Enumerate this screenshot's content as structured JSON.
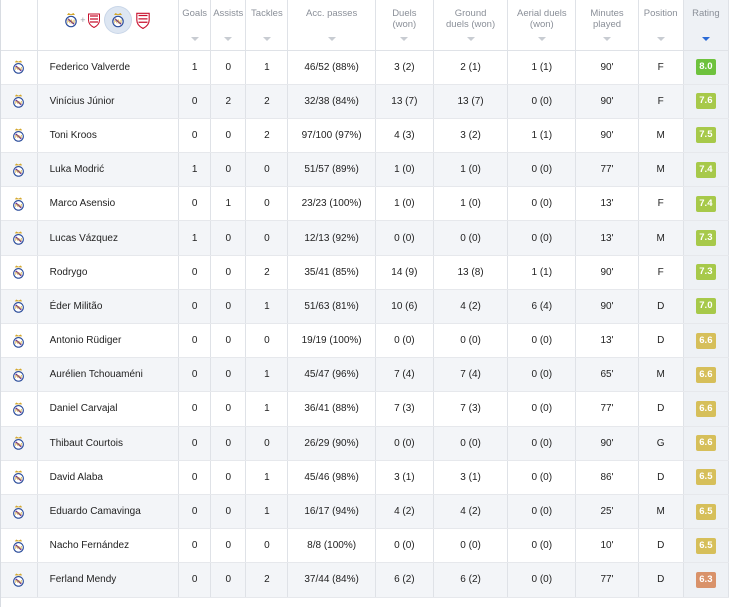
{
  "header": {
    "columns": [
      {
        "key": "goals",
        "label": "Goals"
      },
      {
        "key": "assists",
        "label": "Assists"
      },
      {
        "key": "tackles",
        "label": "Tackles"
      },
      {
        "key": "acc_passes",
        "label": "Acc. passes"
      },
      {
        "key": "duels",
        "label": "Duels (won)"
      },
      {
        "key": "ground",
        "label": "Ground duels (won)"
      },
      {
        "key": "aerial",
        "label": "Aerial duels (won)"
      },
      {
        "key": "minutes",
        "label": "Minutes played"
      },
      {
        "key": "position",
        "label": "Position"
      },
      {
        "key": "rating",
        "label": "Rating"
      }
    ],
    "team_icons": {
      "home": "real-madrid-crest-icon",
      "away": "sevilla-crest-icon",
      "combined_symbol": "+"
    }
  },
  "colors": {
    "rating_green": "#6ec23d",
    "rating_lime": "#a7c94a",
    "rating_yellow": "#d6bf5a",
    "rating_orange": "#d9926a",
    "sort_accent": "#2a6ad6"
  },
  "players": [
    {
      "name": "Federico Valverde",
      "goals": "1",
      "assists": "0",
      "tackles": "1",
      "acc_passes": "46/52 (88%)",
      "duels": "3 (2)",
      "ground": "2 (1)",
      "aerial": "1 (1)",
      "minutes": "90'",
      "position": "F",
      "rating": "8.0",
      "rating_tier": "green"
    },
    {
      "name": "Vinícius Júnior",
      "goals": "0",
      "assists": "2",
      "tackles": "2",
      "acc_passes": "32/38 (84%)",
      "duels": "13 (7)",
      "ground": "13 (7)",
      "aerial": "0 (0)",
      "minutes": "90'",
      "position": "F",
      "rating": "7.6",
      "rating_tier": "lime"
    },
    {
      "name": "Toni Kroos",
      "goals": "0",
      "assists": "0",
      "tackles": "2",
      "acc_passes": "97/100 (97%)",
      "duels": "4 (3)",
      "ground": "3 (2)",
      "aerial": "1 (1)",
      "minutes": "90'",
      "position": "M",
      "rating": "7.5",
      "rating_tier": "lime"
    },
    {
      "name": "Luka Modrić",
      "goals": "1",
      "assists": "0",
      "tackles": "0",
      "acc_passes": "51/57 (89%)",
      "duels": "1 (0)",
      "ground": "1 (0)",
      "aerial": "0 (0)",
      "minutes": "77'",
      "position": "M",
      "rating": "7.4",
      "rating_tier": "lime"
    },
    {
      "name": "Marco Asensio",
      "goals": "0",
      "assists": "1",
      "tackles": "0",
      "acc_passes": "23/23 (100%)",
      "duels": "1 (0)",
      "ground": "1 (0)",
      "aerial": "0 (0)",
      "minutes": "13'",
      "position": "F",
      "rating": "7.4",
      "rating_tier": "lime"
    },
    {
      "name": "Lucas Vázquez",
      "goals": "1",
      "assists": "0",
      "tackles": "0",
      "acc_passes": "12/13 (92%)",
      "duels": "0 (0)",
      "ground": "0 (0)",
      "aerial": "0 (0)",
      "minutes": "13'",
      "position": "M",
      "rating": "7.3",
      "rating_tier": "lime"
    },
    {
      "name": "Rodrygo",
      "goals": "0",
      "assists": "0",
      "tackles": "2",
      "acc_passes": "35/41 (85%)",
      "duels": "14 (9)",
      "ground": "13 (8)",
      "aerial": "1 (1)",
      "minutes": "90'",
      "position": "F",
      "rating": "7.3",
      "rating_tier": "lime"
    },
    {
      "name": "Éder Militão",
      "goals": "0",
      "assists": "0",
      "tackles": "1",
      "acc_passes": "51/63 (81%)",
      "duels": "10 (6)",
      "ground": "4 (2)",
      "aerial": "6 (4)",
      "minutes": "90'",
      "position": "D",
      "rating": "7.0",
      "rating_tier": "lime"
    },
    {
      "name": "Antonio Rüdiger",
      "goals": "0",
      "assists": "0",
      "tackles": "0",
      "acc_passes": "19/19 (100%)",
      "duels": "0 (0)",
      "ground": "0 (0)",
      "aerial": "0 (0)",
      "minutes": "13'",
      "position": "D",
      "rating": "6.6",
      "rating_tier": "yellow"
    },
    {
      "name": "Aurélien Tchouaméni",
      "goals": "0",
      "assists": "0",
      "tackles": "1",
      "acc_passes": "45/47 (96%)",
      "duels": "7 (4)",
      "ground": "7 (4)",
      "aerial": "0 (0)",
      "minutes": "65'",
      "position": "M",
      "rating": "6.6",
      "rating_tier": "yellow"
    },
    {
      "name": "Daniel Carvajal",
      "goals": "0",
      "assists": "0",
      "tackles": "1",
      "acc_passes": "36/41 (88%)",
      "duels": "7 (3)",
      "ground": "7 (3)",
      "aerial": "0 (0)",
      "minutes": "77'",
      "position": "D",
      "rating": "6.6",
      "rating_tier": "yellow"
    },
    {
      "name": "Thibaut Courtois",
      "goals": "0",
      "assists": "0",
      "tackles": "0",
      "acc_passes": "26/29 (90%)",
      "duels": "0 (0)",
      "ground": "0 (0)",
      "aerial": "0 (0)",
      "minutes": "90'",
      "position": "G",
      "rating": "6.6",
      "rating_tier": "yellow"
    },
    {
      "name": "David Alaba",
      "goals": "0",
      "assists": "0",
      "tackles": "1",
      "acc_passes": "45/46 (98%)",
      "duels": "3 (1)",
      "ground": "3 (1)",
      "aerial": "0 (0)",
      "minutes": "86'",
      "position": "D",
      "rating": "6.5",
      "rating_tier": "yellow"
    },
    {
      "name": "Eduardo Camavinga",
      "goals": "0",
      "assists": "0",
      "tackles": "1",
      "acc_passes": "16/17 (94%)",
      "duels": "4 (2)",
      "ground": "4 (2)",
      "aerial": "0 (0)",
      "minutes": "25'",
      "position": "M",
      "rating": "6.5",
      "rating_tier": "yellow"
    },
    {
      "name": "Nacho Fernández",
      "goals": "0",
      "assists": "0",
      "tackles": "0",
      "acc_passes": "8/8 (100%)",
      "duels": "0 (0)",
      "ground": "0 (0)",
      "aerial": "0 (0)",
      "minutes": "10'",
      "position": "D",
      "rating": "6.5",
      "rating_tier": "yellow"
    },
    {
      "name": "Ferland Mendy",
      "goals": "0",
      "assists": "0",
      "tackles": "2",
      "acc_passes": "37/44 (84%)",
      "duels": "6 (2)",
      "ground": "6 (2)",
      "aerial": "0 (0)",
      "minutes": "77'",
      "position": "D",
      "rating": "6.3",
      "rating_tier": "orange"
    }
  ]
}
